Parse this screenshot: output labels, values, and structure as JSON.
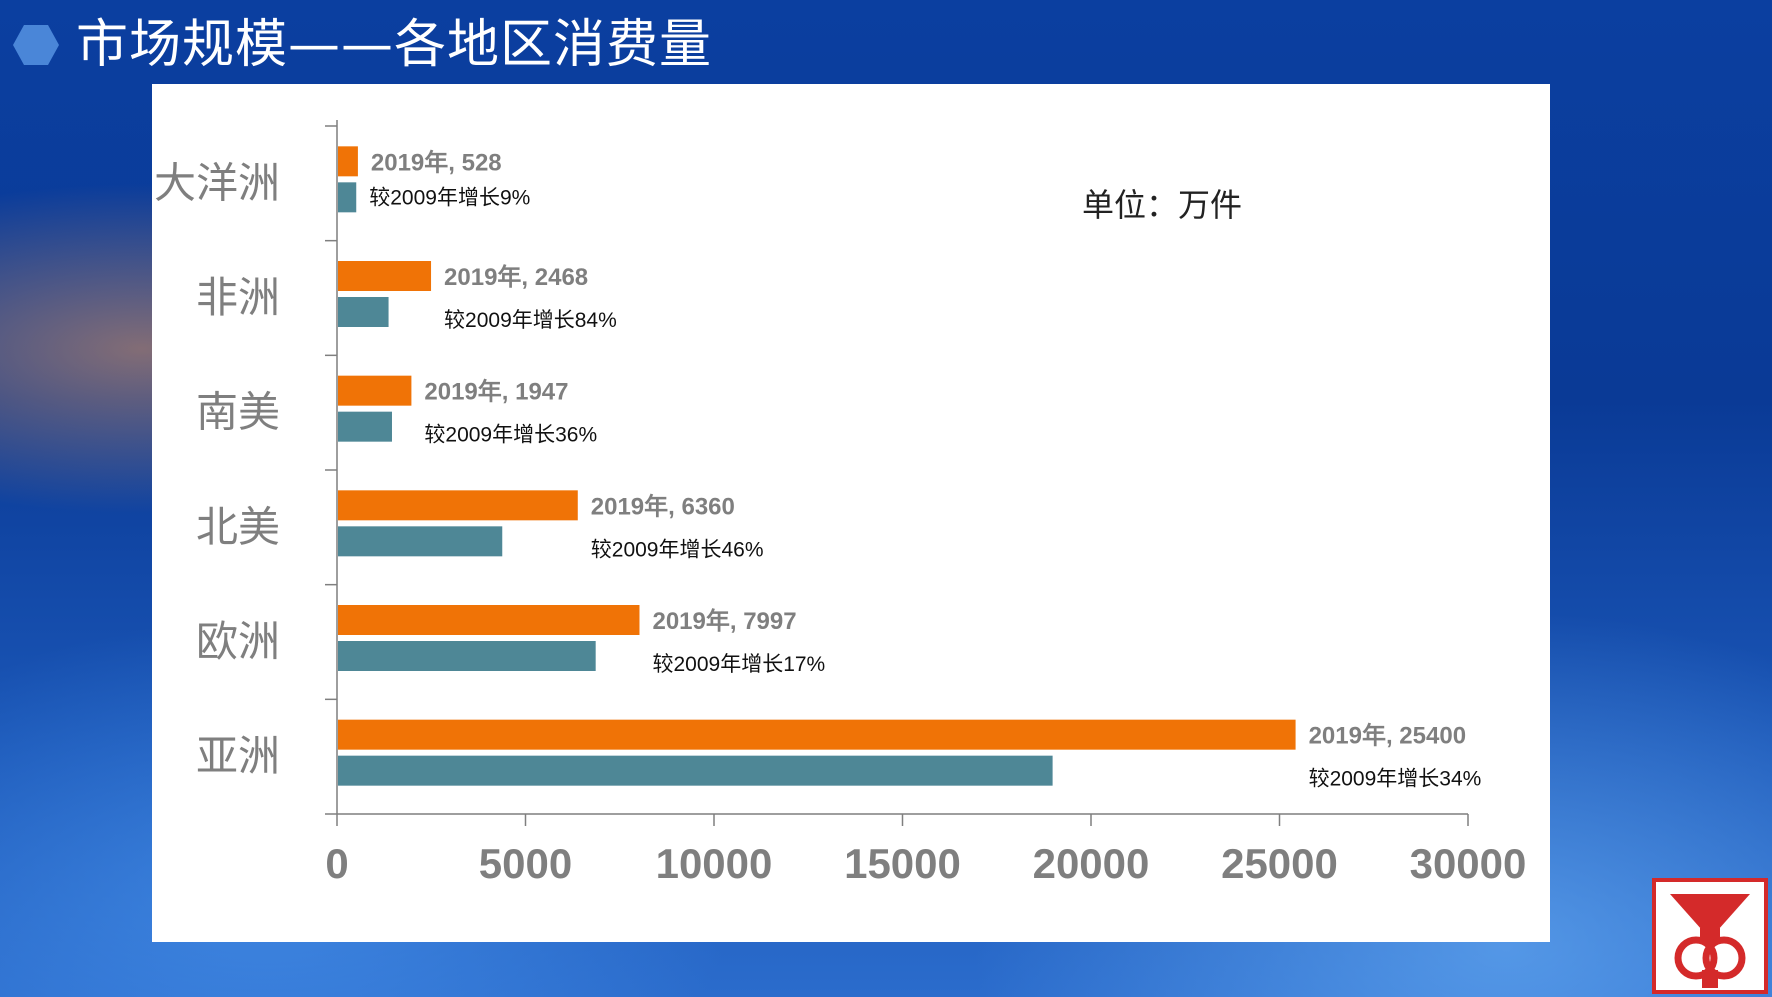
{
  "header": {
    "title": "市场规模——各地区消费量"
  },
  "chart": {
    "unit": "单位：万件"
  },
  "chart_data": {
    "type": "bar",
    "orientation": "horizontal",
    "title": "",
    "xlabel": "",
    "ylabel": "",
    "xlim": [
      0,
      30000
    ],
    "x_ticks": [
      "0",
      "5000",
      "10000",
      "15000",
      "20000",
      "25000",
      "30000"
    ],
    "grid": false,
    "categories": [
      "大洋洲",
      "非洲",
      "南美",
      "北美",
      "欧洲",
      "亚洲"
    ],
    "series": [
      {
        "values": [
          528,
          2468,
          1947,
          6360,
          7997,
          25400
        ]
      },
      {
        "values": [
          484,
          1341,
          1432,
          4357,
          6835,
          18955
        ]
      }
    ],
    "labels_primary": [
      "2019年, 528",
      "2019年, 2468",
      "2019年, 1947",
      "2019年, 6360",
      "2019年, 7997",
      "2019年, 25400"
    ],
    "labels_growth": [
      "较2009年增长9%",
      "较2009年增长84%",
      "较2009年增长36%",
      "较2009年增长46%",
      "较2009年增长17%",
      "较2009年增长34%"
    ]
  },
  "colors": {
    "bar_2019": "#f07306",
    "bar_2009": "#4e8796",
    "value_label": "#7f7f7f",
    "category_label": "#7f7f7f",
    "axis": "#7f7f7f"
  },
  "icons": {
    "title_bullet": "hexagon-icon",
    "logo": "company-logo-icon"
  }
}
